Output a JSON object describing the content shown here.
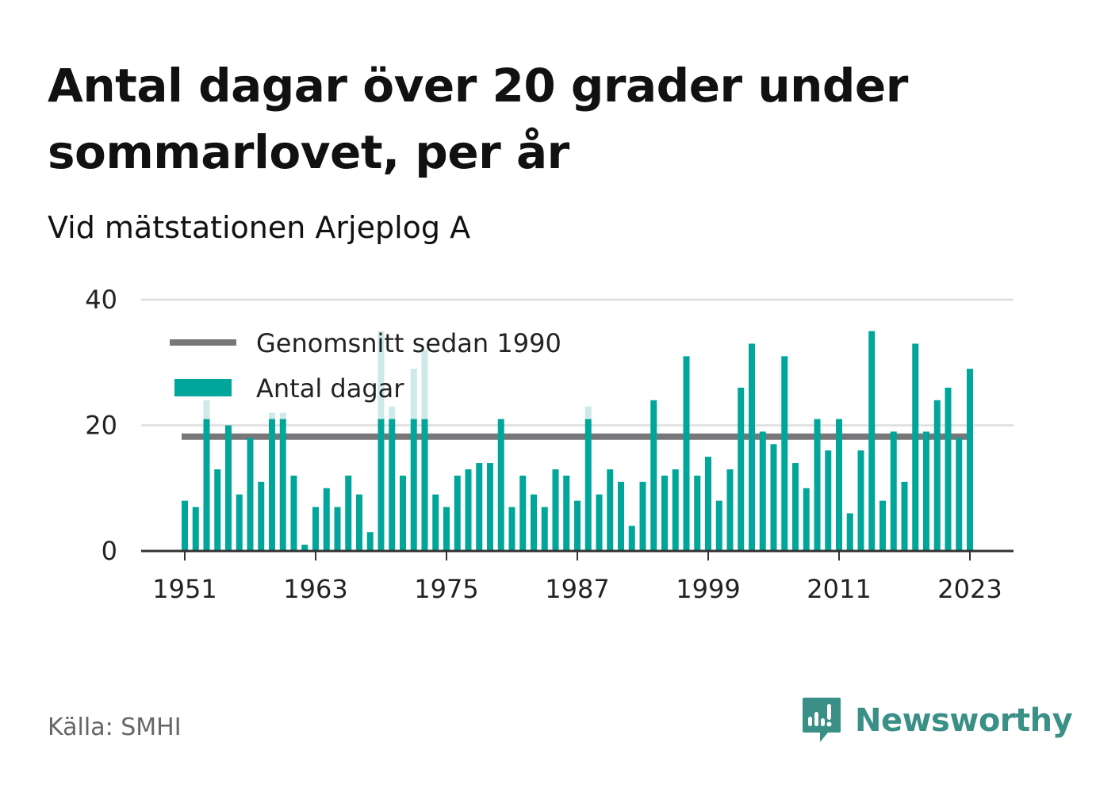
{
  "header": {
    "title": "Antal dagar över 20 grader under sommarlovet, per år",
    "subtitle": "Vid mätstationen Arjeplog A"
  },
  "footer": {
    "source": "Källa: SMHI",
    "brand": "Newsworthy"
  },
  "colors": {
    "bar": "#00a699",
    "bar_faded": "#cde9e8",
    "average_line": "#77777a",
    "grid": "#dddddd",
    "axis": "#333333",
    "brand": "#3a8f86"
  },
  "chart_data": {
    "type": "bar",
    "title": "Antal dagar över 20 grader under sommarlovet, per år",
    "subtitle": "Vid mätstationen Arjeplog A",
    "x": [
      1951,
      1952,
      1953,
      1954,
      1955,
      1956,
      1957,
      1958,
      1959,
      1960,
      1961,
      1962,
      1963,
      1964,
      1965,
      1966,
      1967,
      1968,
      1969,
      1970,
      1971,
      1972,
      1973,
      1974,
      1975,
      1976,
      1977,
      1978,
      1979,
      1980,
      1981,
      1982,
      1983,
      1984,
      1985,
      1986,
      1987,
      1988,
      1989,
      1990,
      1991,
      1992,
      1993,
      1994,
      1995,
      1996,
      1997,
      1998,
      1999,
      2000,
      2001,
      2002,
      2003,
      2004,
      2005,
      2006,
      2007,
      2008,
      2009,
      2010,
      2011,
      2012,
      2013,
      2014,
      2015,
      2016,
      2017,
      2018,
      2019,
      2020,
      2021,
      2022,
      2023
    ],
    "values": [
      8,
      7,
      21,
      13,
      20,
      9,
      18,
      11,
      21,
      21,
      12,
      1,
      7,
      10,
      7,
      12,
      9,
      3,
      21,
      21,
      12,
      21,
      21,
      9,
      7,
      12,
      13,
      14,
      14,
      21,
      7,
      12,
      9,
      7,
      13,
      12,
      8,
      21,
      9,
      13,
      11,
      4,
      11,
      24,
      12,
      13,
      31,
      12,
      15,
      8,
      13,
      26,
      33,
      19,
      17,
      31,
      14,
      10,
      21,
      16,
      21,
      6,
      16,
      35,
      8,
      19,
      11,
      33,
      19,
      24,
      26,
      18,
      29
    ],
    "faded_extension": [
      0,
      0,
      24,
      0,
      0,
      0,
      0,
      0,
      22,
      22,
      0,
      0,
      0,
      0,
      0,
      0,
      0,
      0,
      35,
      23,
      0,
      29,
      32,
      0,
      0,
      0,
      0,
      0,
      0,
      0,
      0,
      0,
      0,
      0,
      0,
      0,
      0,
      23,
      0,
      0,
      0,
      0,
      0,
      0,
      0,
      0,
      0,
      0,
      0,
      0,
      0,
      0,
      0,
      0,
      0,
      0,
      0,
      0,
      0,
      0,
      0,
      0,
      0,
      0,
      0,
      0,
      0,
      0,
      0,
      0,
      0,
      0,
      0
    ],
    "average_since_1990": 18.2,
    "average_start_year": 1951,
    "average_end_year": 2023,
    "x_ticks": [
      1951,
      1963,
      1975,
      1987,
      1999,
      2011,
      2023
    ],
    "y_ticks": [
      0,
      20,
      40
    ],
    "ylim": [
      0,
      40
    ],
    "xlabel": "",
    "ylabel": "",
    "grid": true,
    "legend": {
      "placement": "top-left",
      "entries": [
        {
          "name": "Genomsnitt sedan 1990",
          "type": "line"
        },
        {
          "name": "Antal dagar",
          "type": "bar"
        }
      ]
    }
  }
}
